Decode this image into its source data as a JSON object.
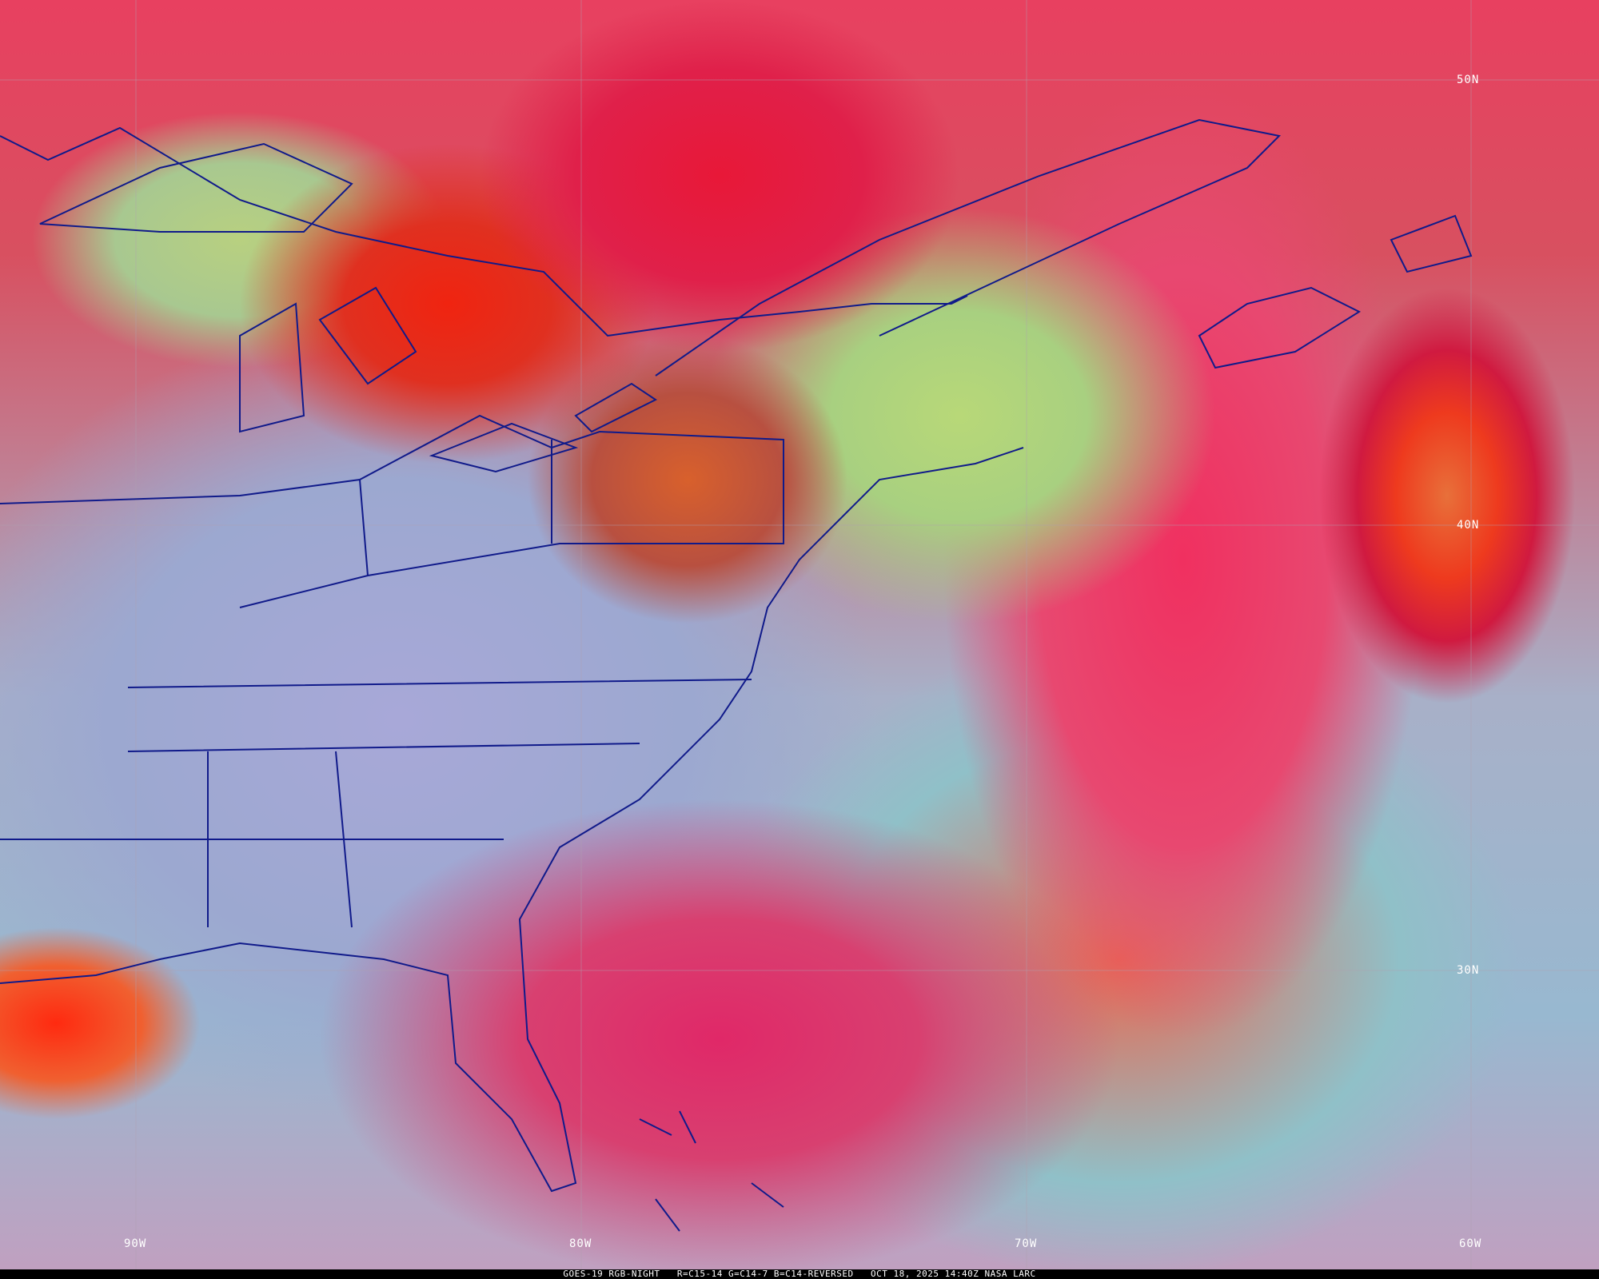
{
  "map": {
    "latitude_labels": [
      "50N",
      "40N",
      "30N"
    ],
    "longitude_labels": [
      "90W",
      "80W",
      "70W",
      "60W"
    ],
    "boundary_color": "#101a8a",
    "grid_color": "#a0a0a0"
  },
  "caption": {
    "product": "GOES-19 RGB-NIGHT",
    "channels": "R=C15-14 G=C14-7 B=C14-REVERSED",
    "datetime": "OCT 18, 2025 14:40Z",
    "source": "NASA LARC"
  }
}
